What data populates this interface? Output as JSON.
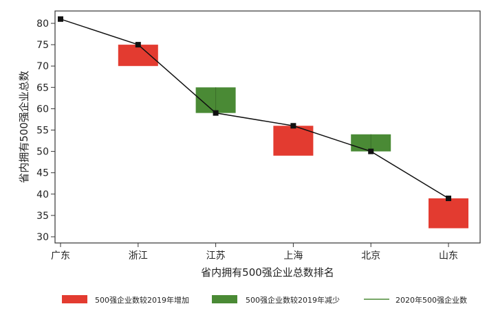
{
  "chart_data": {
    "type": "bar",
    "subtype": "floating-bar-with-line",
    "title": "",
    "xlabel": "省内拥有500强企业总数排名",
    "ylabel": "省内拥有500强企业总数",
    "ylim": [
      28,
      83
    ],
    "yticks": [
      30,
      35,
      40,
      45,
      50,
      55,
      60,
      65,
      70,
      75,
      80
    ],
    "categories": [
      "广东",
      "浙江",
      "江苏",
      "上海",
      "北京",
      "山东"
    ],
    "line_series": {
      "name": "2020年500强企业数",
      "values": [
        81,
        75,
        59,
        56,
        50,
        39
      ]
    },
    "range_bars": [
      {
        "category": "浙江",
        "low": 70,
        "high": 75,
        "kind": "increase"
      },
      {
        "category": "江苏",
        "low": 59,
        "high": 65,
        "kind": "decrease"
      },
      {
        "category": "上海",
        "low": 49,
        "high": 56,
        "kind": "increase"
      },
      {
        "category": "北京",
        "low": 50,
        "high": 54,
        "kind": "decrease"
      },
      {
        "category": "山东",
        "low": 32,
        "high": 39,
        "kind": "increase"
      }
    ],
    "legend": {
      "placement": "bottom",
      "entries": [
        {
          "label": "500强企业数较2019年增加",
          "kind": "increase"
        },
        {
          "label": "500强企业数较2019年减少",
          "kind": "decrease"
        },
        {
          "label": "2020年500强企业数",
          "kind": "line"
        }
      ]
    },
    "colors": {
      "increase": "#e33b30",
      "decrease": "#4a8a35",
      "line": "#111111",
      "legend_line": "#4a8a35"
    },
    "grid": false
  }
}
